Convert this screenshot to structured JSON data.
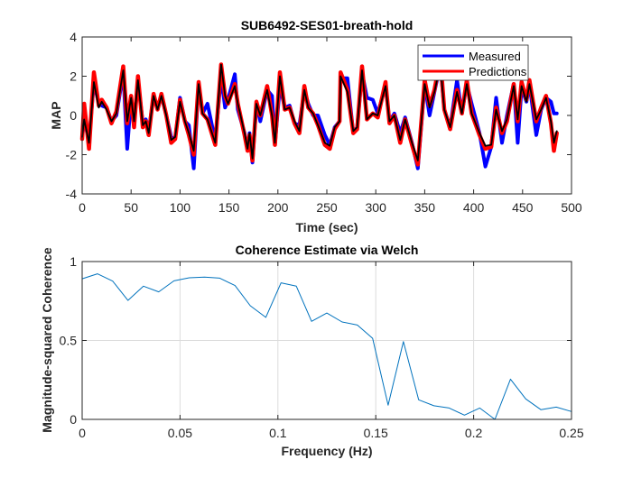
{
  "chart_data": [
    {
      "type": "line",
      "title": "SUB6492-SES01-breath-hold",
      "xlabel": "Time (sec)",
      "ylabel": "MAP",
      "xlim": [
        0,
        500
      ],
      "ylim": [
        -4,
        4
      ],
      "xticks": [
        "0",
        "50",
        "100",
        "150",
        "200",
        "250",
        "300",
        "350",
        "400",
        "450",
        "500"
      ],
      "yticks": [
        "-4",
        "-2",
        "0",
        "2",
        "4"
      ],
      "grid": false,
      "legend": {
        "placement": "top-right",
        "entries": [
          "Measured",
          "Predictions"
        ]
      },
      "x": [
        0,
        2,
        7,
        12,
        17,
        20,
        25,
        30,
        35,
        42,
        46,
        50,
        53,
        57,
        62,
        65,
        68,
        73,
        77,
        81,
        86,
        91,
        95,
        100,
        105,
        109,
        114,
        119,
        123,
        128,
        136,
        142,
        146,
        149,
        156,
        159,
        166,
        169,
        171,
        174,
        178,
        182,
        189,
        194,
        197,
        202,
        207,
        212,
        217,
        222,
        227,
        231,
        236,
        241,
        248,
        253,
        258,
        263,
        264,
        271,
        277,
        281,
        286,
        291,
        297,
        302,
        310,
        314,
        319,
        325,
        330,
        337,
        343,
        350,
        355,
        360,
        366,
        370,
        376,
        383,
        388,
        393,
        398,
        406,
        412,
        418,
        423,
        429,
        434,
        441,
        445,
        449,
        454,
        457,
        464,
        469,
        474,
        479,
        482,
        485
      ],
      "series": [
        {
          "name": "Measured",
          "color": "#0000FF",
          "values": [
            -1.1,
            -0.2,
            -1.3,
            1.7,
            0.6,
            0.5,
            0.4,
            -0.3,
            0.0,
            2.2,
            -1.7,
            0.9,
            -0.4,
            1.8,
            -0.4,
            -0.2,
            -0.8,
            1.0,
            0.3,
            1.0,
            0.0,
            -1.1,
            -1.2,
            0.9,
            -0.3,
            -0.5,
            -2.7,
            1.6,
            0.1,
            0.6,
            -1.3,
            2.0,
            0.4,
            0.8,
            2.1,
            0.3,
            -0.9,
            -1.7,
            -0.9,
            -2.4,
            0.6,
            -0.3,
            1.3,
            1.0,
            -1.5,
            1.5,
            0.4,
            0.5,
            -0.4,
            -0.5,
            1.3,
            0.6,
            0.0,
            0.0,
            -1.0,
            -1.5,
            -0.6,
            -0.3,
            1.9,
            1.9,
            -0.9,
            -0.6,
            2.2,
            0.9,
            0.8,
            0.1,
            1.5,
            -0.3,
            0.1,
            -0.9,
            -0.1,
            -1.4,
            -2.7,
            1.6,
            0.0,
            1.2,
            2.6,
            0.3,
            -0.6,
            1.8,
            0.1,
            1.6,
            0.6,
            -0.9,
            -2.6,
            -1.6,
            0.9,
            -1.4,
            0.0,
            1.6,
            -1.4,
            1.4,
            0.7,
            1.6,
            -1.0,
            0.3,
            0.9,
            0.7,
            0.1,
            0.1
          ]
        },
        {
          "name": "Predictions",
          "color": "#FF0000",
          "values": [
            -1.2,
            0.6,
            -1.7,
            2.2,
            0.5,
            0.8,
            0.4,
            -0.4,
            0.2,
            2.5,
            -0.4,
            1.0,
            -0.6,
            2.0,
            -0.6,
            -0.3,
            -1.0,
            1.1,
            0.3,
            1.1,
            0.0,
            -1.4,
            -1.2,
            0.8,
            -0.3,
            -1.0,
            -2.0,
            1.7,
            0.1,
            -0.2,
            -1.5,
            2.6,
            1.0,
            0.6,
            1.6,
            0.6,
            -1.0,
            -1.8,
            -1.0,
            -2.3,
            0.7,
            0.0,
            1.5,
            0.0,
            -1.5,
            2.2,
            0.3,
            0.4,
            -0.4,
            -0.9,
            1.5,
            0.4,
            0.1,
            -0.5,
            -1.5,
            -1.7,
            -0.7,
            -0.3,
            2.2,
            1.3,
            -0.9,
            -0.7,
            2.5,
            -0.2,
            0.1,
            -0.1,
            1.7,
            -0.4,
            0.0,
            -1.4,
            -0.2,
            -1.5,
            -2.5,
            1.8,
            0.5,
            1.3,
            2.9,
            0.3,
            -0.7,
            1.3,
            0.1,
            1.8,
            0.1,
            -1.0,
            -1.7,
            -1.6,
            0.4,
            -0.9,
            -0.3,
            1.6,
            -0.3,
            1.7,
            0.8,
            1.8,
            -0.3,
            0.4,
            1.0,
            -0.4,
            -1.8,
            -0.9
          ]
        },
        {
          "name": "",
          "color": "#000000",
          "values": [
            -1.1,
            -0.2,
            -1.4,
            1.7,
            0.4,
            0.7,
            0.3,
            -0.3,
            0.1,
            2.3,
            -0.3,
            0.9,
            -0.3,
            1.8,
            -0.5,
            -0.3,
            -0.9,
            1.0,
            0.3,
            1.0,
            0.0,
            -1.25,
            -1.1,
            0.7,
            -0.3,
            -0.9,
            -1.8,
            1.6,
            0.1,
            -0.2,
            -1.4,
            2.6,
            1.0,
            0.6,
            1.5,
            0.6,
            -0.9,
            -1.7,
            -0.9,
            -2.2,
            0.6,
            0.0,
            1.3,
            0.0,
            -1.4,
            2.0,
            0.3,
            0.4,
            -0.3,
            -0.8,
            1.3,
            0.4,
            0.1,
            -0.5,
            -1.4,
            -1.55,
            -0.6,
            -0.3,
            2.0,
            1.2,
            -0.8,
            -0.6,
            2.3,
            -0.2,
            0.1,
            0.0,
            1.5,
            -0.3,
            0.0,
            -1.25,
            -0.2,
            -1.4,
            -2.3,
            1.6,
            0.4,
            1.2,
            2.6,
            0.3,
            -0.6,
            1.2,
            0.1,
            1.6,
            0.1,
            -0.9,
            -1.55,
            -1.5,
            0.3,
            -0.8,
            -0.2,
            1.5,
            -0.2,
            1.5,
            0.7,
            1.6,
            -0.2,
            0.3,
            0.9,
            -0.3,
            -1.4,
            -0.8
          ]
        }
      ]
    },
    {
      "type": "line",
      "title": "Coherence Estimate via Welch",
      "xlabel": "Frequency (Hz)",
      "ylabel": "Magnitude-squared Coherence",
      "xlim": [
        0,
        0.25
      ],
      "ylim": [
        0,
        1
      ],
      "xticks": [
        "0",
        "0.05",
        "0.1",
        "0.15",
        "0.2",
        "0.25"
      ],
      "yticks": [
        "0",
        "0.5",
        "1"
      ],
      "grid": true,
      "x": [
        0,
        0.0078,
        0.0156,
        0.0234,
        0.0313,
        0.0391,
        0.0469,
        0.0547,
        0.0625,
        0.0703,
        0.0781,
        0.0859,
        0.0938,
        0.1016,
        0.1094,
        0.1172,
        0.125,
        0.1328,
        0.1406,
        0.1484,
        0.1563,
        0.1641,
        0.1719,
        0.1797,
        0.1875,
        0.1953,
        0.2031,
        0.2109,
        0.2188,
        0.2266,
        0.2344,
        0.2422,
        0.25
      ],
      "series": [
        {
          "name": "",
          "color": "#0072BD",
          "values": [
            0.891,
            0.922,
            0.876,
            0.754,
            0.844,
            0.808,
            0.878,
            0.897,
            0.901,
            0.895,
            0.848,
            0.72,
            0.646,
            0.865,
            0.844,
            0.621,
            0.674,
            0.617,
            0.598,
            0.514,
            0.09,
            0.493,
            0.124,
            0.086,
            0.072,
            0.027,
            0.072,
            0.0,
            0.255,
            0.13,
            0.061,
            0.078,
            0.05
          ]
        }
      ]
    }
  ]
}
